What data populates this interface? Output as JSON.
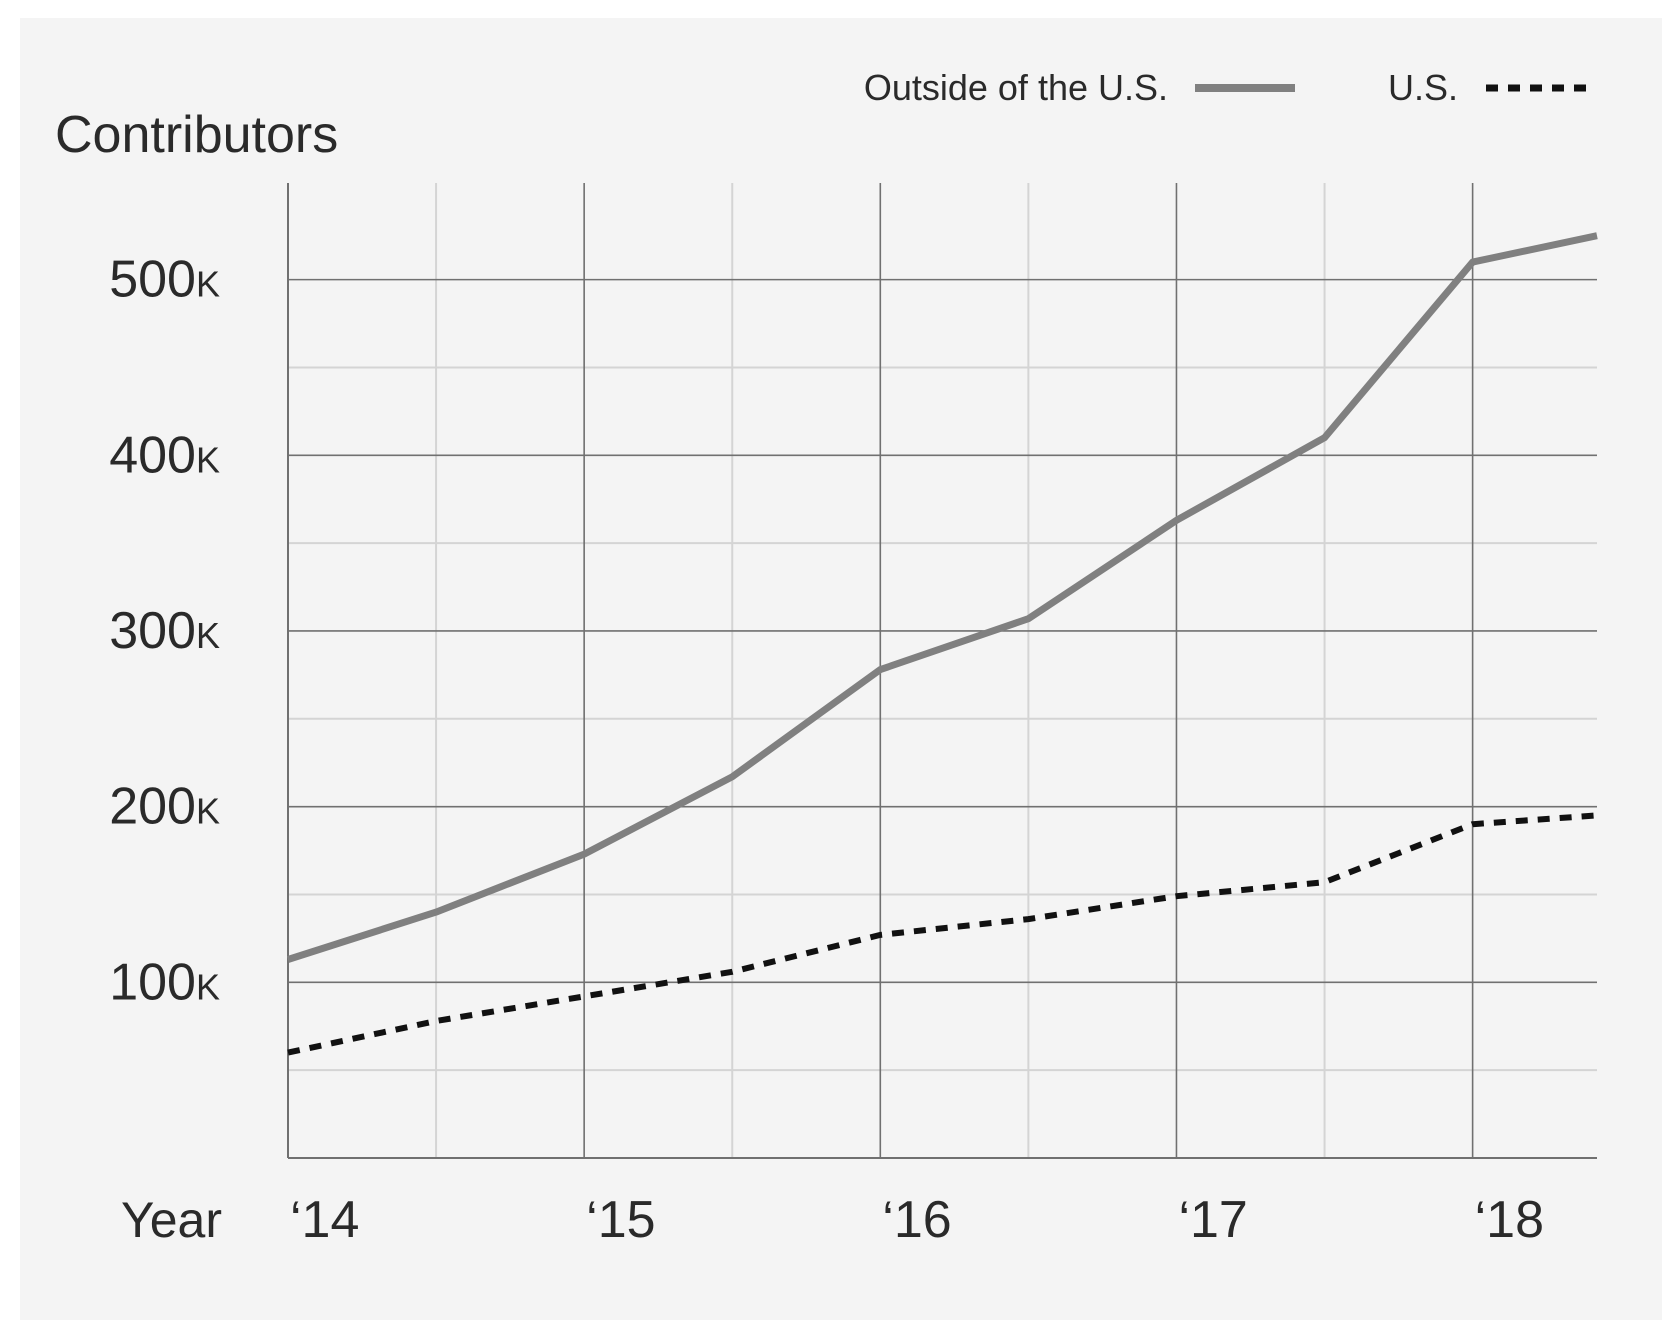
{
  "chart_data": {
    "type": "line",
    "ylabel": "Contributors",
    "xlabel": "Year",
    "x": [
      2014.0,
      2014.5,
      2015.0,
      2015.5,
      2016.0,
      2016.5,
      2017.0,
      2017.5,
      2018.0,
      2018.42
    ],
    "xlim": [
      2014.0,
      2018.42
    ],
    "ylim": [
      0,
      555000
    ],
    "x_ticks": [
      {
        "value": 2014,
        "label": "‘14"
      },
      {
        "value": 2015,
        "label": "‘15"
      },
      {
        "value": 2016,
        "label": "‘16"
      },
      {
        "value": 2017,
        "label": "‘17"
      },
      {
        "value": 2018,
        "label": "‘18"
      }
    ],
    "y_ticks": [
      {
        "value": 100000,
        "label": "100",
        "suffix": "K"
      },
      {
        "value": 200000,
        "label": "200",
        "suffix": "K"
      },
      {
        "value": 300000,
        "label": "300",
        "suffix": "K"
      },
      {
        "value": 400000,
        "label": "400",
        "suffix": "K"
      },
      {
        "value": 500000,
        "label": "500",
        "suffix": "K"
      }
    ],
    "minor_x_gridlines": [
      2014.5,
      2015.5,
      2016.5,
      2017.5
    ],
    "minor_y_gridlines": [
      50000,
      150000,
      250000,
      350000,
      450000
    ],
    "grid": true,
    "legend_position": "top-right",
    "series": [
      {
        "name": "Outside of the U.S.",
        "style": "solid",
        "color": "#808080",
        "values": [
          113000,
          140000,
          173000,
          217000,
          278000,
          307000,
          363000,
          410000,
          510000,
          525000
        ]
      },
      {
        "name": "U.S.",
        "style": "dotted",
        "color": "#111111",
        "values": [
          60000,
          78000,
          92000,
          106000,
          127000,
          136000,
          149000,
          157000,
          190000,
          195000
        ]
      }
    ]
  },
  "colors": {
    "panel_background": "#f4f4f4",
    "major_grid": "#707070",
    "minor_grid": "#d4d4d4",
    "text": "#2a2a2a",
    "outside_us_line": "#808080",
    "us_line": "#111111"
  }
}
